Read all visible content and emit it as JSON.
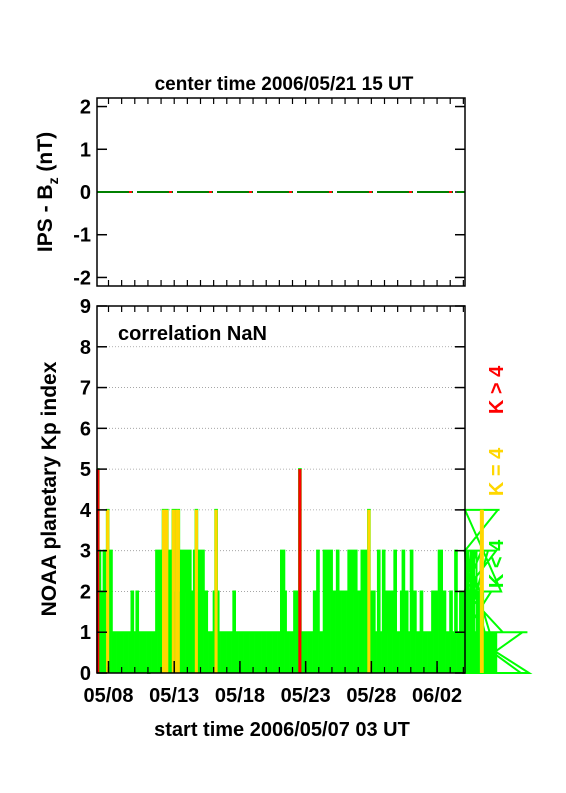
{
  "chart_data": [
    {
      "type": "line",
      "title": "center time 2006/05/21 15 UT",
      "ylabel_main": "IPS - B",
      "ylabel_sub": "z",
      "ylabel_unit": " (nT)",
      "ylim": [
        -2.2,
        2.2
      ],
      "yticks": [
        -2,
        -1,
        0,
        1,
        2
      ],
      "ytick_labels": [
        "-2",
        "-1",
        "0",
        "1",
        "2"
      ],
      "series": [
        {
          "color": "#008000",
          "dash": "long",
          "x": [
            0,
            28
          ],
          "y": [
            0,
            0
          ]
        },
        {
          "color": "#ff0000",
          "dash": "short",
          "x": [
            0,
            28
          ],
          "y": [
            0,
            0
          ]
        }
      ]
    },
    {
      "type": "bar",
      "annotation": "correlation NaN",
      "ylabel": "NOAA planetary Kp index",
      "xlabel": "start time 2006/05/07 03 UT",
      "ylim": [
        0,
        9
      ],
      "yticks": [
        0,
        1,
        2,
        3,
        4,
        5,
        6,
        7,
        8,
        9
      ],
      "ytick_labels": [
        "0",
        "1",
        "2",
        "3",
        "4",
        "5",
        "6",
        "7",
        "8",
        "9"
      ],
      "grid": true,
      "xlim_days": [
        0,
        28
      ],
      "xtick_labels": [
        "05/08",
        "05/13",
        "05/18",
        "05/23",
        "05/28",
        "06/02"
      ],
      "xticks_days": [
        0.875,
        5.875,
        10.875,
        15.875,
        20.875,
        25.875
      ],
      "interval_days": 0.125,
      "kp_values": [
        5,
        3,
        2,
        1,
        3,
        3,
        4,
        3,
        3,
        1,
        1,
        1,
        1,
        1,
        1,
        1,
        1,
        1,
        1,
        1,
        1,
        2,
        1,
        1,
        2,
        1,
        1,
        1,
        1,
        1,
        1,
        0,
        1,
        1,
        1,
        1,
        3,
        2,
        3,
        2,
        4,
        4,
        4,
        3,
        3,
        3,
        4,
        2,
        4,
        4,
        2,
        3,
        3,
        2,
        3,
        2,
        3,
        2,
        1,
        3,
        4,
        2,
        3,
        2,
        3,
        2,
        2,
        1,
        1,
        1,
        1,
        2,
        4,
        2,
        1,
        1,
        1,
        1,
        1,
        1,
        1,
        1,
        1,
        2,
        1,
        1,
        1,
        1,
        1,
        1,
        1,
        1,
        1,
        1,
        1,
        1,
        1,
        1,
        1,
        1,
        1,
        1,
        1,
        1,
        1,
        1,
        1,
        1,
        1,
        1,
        1,
        1,
        3,
        3,
        2,
        1,
        1,
        1,
        1,
        1,
        2,
        2,
        1,
        5,
        1,
        1,
        1,
        1,
        1,
        1,
        1,
        1,
        2,
        1,
        3,
        1,
        1,
        1,
        3,
        2,
        3,
        2,
        3,
        1,
        2,
        2,
        3,
        1,
        2,
        2,
        2,
        2,
        2,
        3,
        2,
        3,
        2,
        3,
        2,
        2,
        2,
        3,
        2,
        3,
        2,
        4,
        2,
        2,
        2,
        1,
        1,
        3,
        1,
        1,
        3,
        2,
        1,
        2,
        2,
        1,
        2,
        3,
        1,
        1,
        1,
        2,
        3,
        2,
        2,
        1,
        1,
        3,
        1,
        2,
        1,
        1,
        1,
        2,
        1,
        1,
        1,
        1,
        1,
        1,
        2,
        2,
        2,
        2,
        3,
        3,
        1,
        2,
        1,
        1,
        1,
        2,
        1,
        1,
        3,
        1,
        1,
        2,
        2,
        2,
        1,
        3,
        1,
        2,
        3,
        1,
        2,
        3,
        3,
        2,
        3,
        3,
        1,
        1,
        3,
        1,
        2,
        2,
        2,
        3,
        4,
        4,
        2,
        1,
        1,
        1,
        1,
        1,
        1,
        1,
        1,
        1,
        1,
        1,
        0,
        1,
        1,
        1,
        1,
        0
      ],
      "legend": [
        {
          "label": "K < 4",
          "color": "#00ff00"
        },
        {
          "label": "K = 4",
          "color": "#ffd700"
        },
        {
          "label": "K > 4",
          "color": "#ff0000"
        }
      ],
      "legend_position": "right"
    }
  ]
}
